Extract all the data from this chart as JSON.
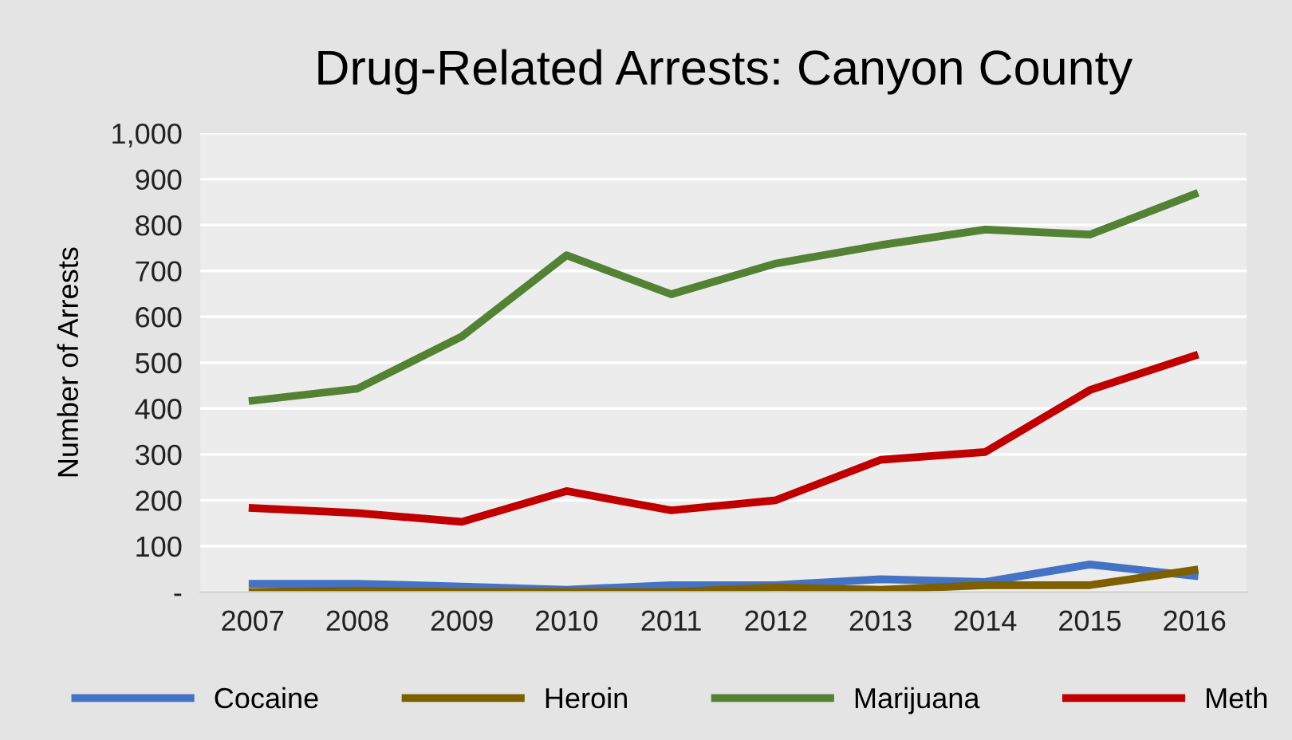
{
  "chart_data": {
    "type": "line",
    "title": "Drug-Related Arrests: Canyon County",
    "ylabel": "Number of Arrests",
    "categories": [
      "2007",
      "2008",
      "2009",
      "2010",
      "2011",
      "2012",
      "2013",
      "2014",
      "2015",
      "2016"
    ],
    "series": [
      {
        "name": "Cocaine",
        "color": "#4472c4",
        "values": [
          18,
          18,
          12,
          5,
          15,
          15,
          28,
          22,
          60,
          35
        ]
      },
      {
        "name": "Heroin",
        "color": "#7f6000",
        "values": [
          0,
          3,
          0,
          0,
          0,
          10,
          5,
          15,
          15,
          48
        ]
      },
      {
        "name": "Marijuana",
        "color": "#548235",
        "values": [
          417,
          443,
          557,
          734,
          649,
          716,
          756,
          790,
          779,
          867
        ]
      },
      {
        "name": "Meth",
        "color": "#c00000",
        "values": [
          183,
          172,
          153,
          220,
          178,
          200,
          288,
          305,
          440,
          515
        ]
      }
    ],
    "ylim": [
      0,
      1000
    ],
    "yticks": [
      {
        "value": 0,
        "label": "-"
      },
      100,
      200,
      300,
      400,
      500,
      600,
      700,
      800,
      900,
      {
        "value": 1000,
        "label": "1,000"
      }
    ],
    "grid": "y",
    "legend": "bottom",
    "marker": "none",
    "line_style": "solid"
  }
}
